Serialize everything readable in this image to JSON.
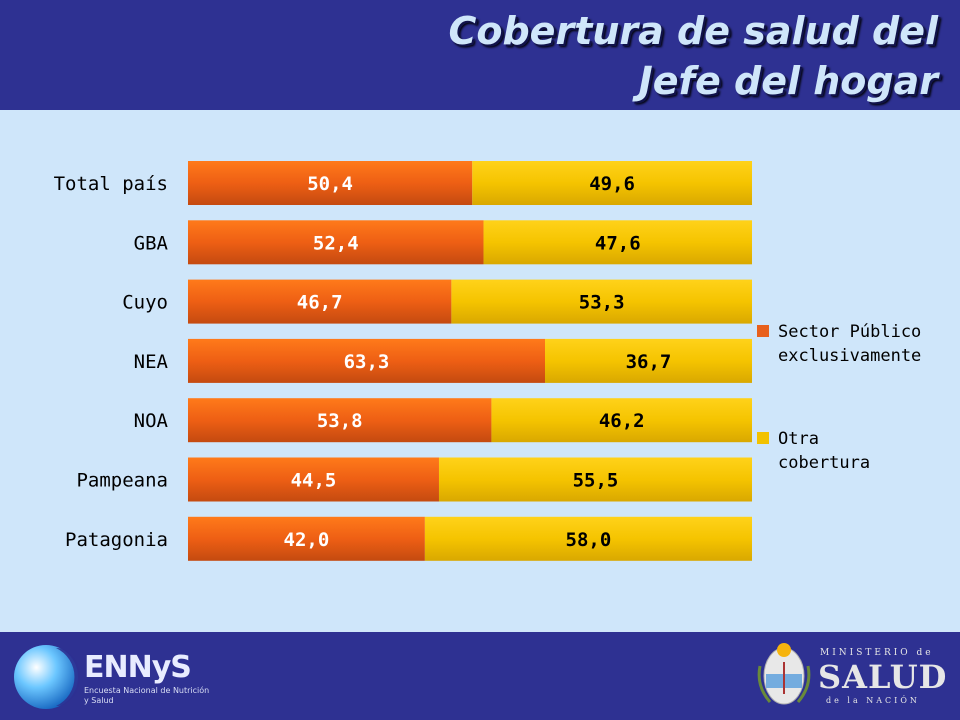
{
  "header": {
    "title_line1": "Cobertura de salud del",
    "title_line2": "Jefe del hogar"
  },
  "colors": {
    "header_bg": "#2e3192",
    "chart_bg": "#cfe6fa",
    "series_publico": "#e8601c",
    "series_otra": "#f2c200"
  },
  "chart_data": {
    "type": "bar",
    "orientation": "horizontal",
    "stacked": true,
    "percent_stacked": true,
    "categories": [
      "Total país",
      "GBA",
      "Cuyo",
      "NEA",
      "NOA",
      "Pampeana",
      "Patagonia"
    ],
    "series": [
      {
        "name": "Sector Público exclusivamente",
        "values": [
          50.4,
          52.4,
          46.7,
          63.3,
          53.8,
          44.5,
          42.0
        ],
        "labels": [
          "50,4",
          "52,4",
          "46,7",
          "63,3",
          "53,8",
          "44,5",
          "42,0"
        ],
        "color": "#e8601c"
      },
      {
        "name": "Otra cobertura",
        "values": [
          49.6,
          47.6,
          53.3,
          36.7,
          46.2,
          55.5,
          58.0
        ],
        "labels": [
          "49,6",
          "47,6",
          "53,3",
          "36,7",
          "46,2",
          "55,5",
          "58,0"
        ],
        "color": "#f2c200"
      }
    ],
    "legend": {
      "position": "right",
      "entries": [
        {
          "line1": "Sector Público",
          "line2": "exclusivamente"
        },
        {
          "line1": "Otra",
          "line2": "cobertura"
        }
      ]
    },
    "xlim": [
      0,
      100
    ]
  },
  "footer": {
    "ennys": {
      "logo_text": "ENNyS",
      "subtitle": "Encuesta Nacional de Nutrición y Salud"
    },
    "ministerio": {
      "top": "MINISTERIO de",
      "main": "SALUD",
      "bottom": "de la NACIÓN"
    }
  }
}
